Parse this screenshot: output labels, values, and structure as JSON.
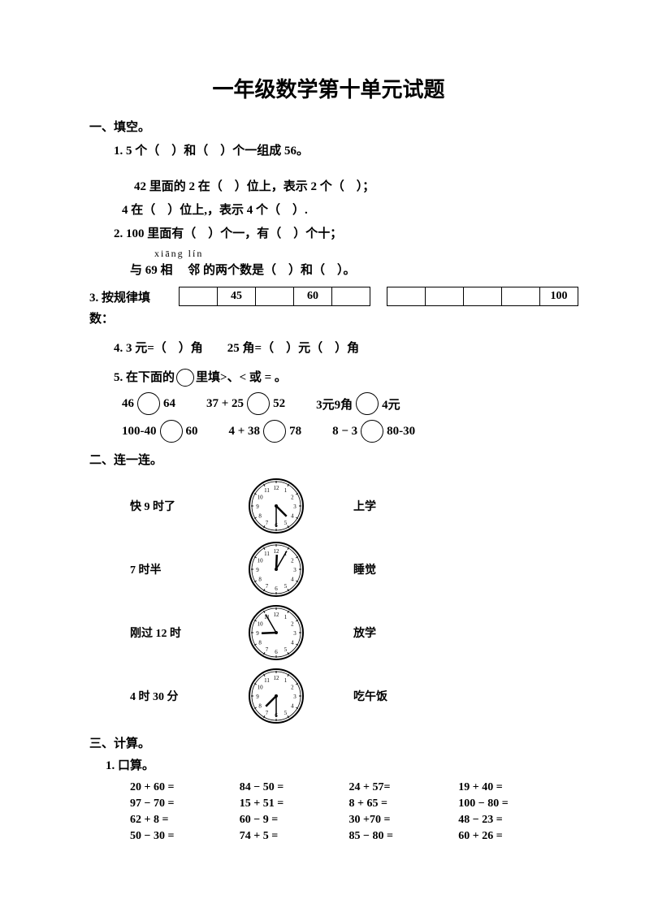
{
  "title": "一年级数学第十单元试题",
  "sec1": {
    "head": "一、填空。"
  },
  "q1": {
    "text": "1. 5 个（　）和（　）个一组成 56。"
  },
  "q1b": {
    "l1": "42 里面的 2 在（　）位上，表示 2 个（　）；",
    "l2": "4 在（　）位上,，表示 4 个（　）."
  },
  "q2": {
    "l1": "2. 100 里面有（　）个一，有（　）个十；",
    "pinyin": "xiāng lín",
    "l2": "与 69 相　 邻 的两个数是（　）和（　）。"
  },
  "q3": {
    "label": "3. 按规律填",
    "label2": "数：",
    "row1": [
      "",
      "45",
      "",
      "60",
      ""
    ],
    "row2": [
      "",
      "",
      "",
      "",
      "100"
    ]
  },
  "q4": {
    "text": "4. 3 元=（　）角　　25 角=（　）元（　）角"
  },
  "q5": {
    "head": "5. 在下面的",
    "mid": "里填>、< 或 = 。",
    "rows": [
      [
        {
          "a": "46",
          "b": "64"
        },
        {
          "a": "37 + 25",
          "b": "52"
        },
        {
          "a": "3元9角",
          "b": "4元"
        }
      ],
      [
        {
          "a": "100-40",
          "b": "60"
        },
        {
          "a": "4 + 38",
          "b": "78"
        },
        {
          "a": "8 − 3",
          "b": "80-30"
        }
      ]
    ]
  },
  "sec2": {
    "head": "二、连一连。",
    "rows": [
      {
        "left": "快 9 时了",
        "right": "上学",
        "h": 4,
        "m": 30
      },
      {
        "left": "7 时半",
        "right": "睡觉",
        "h": 12,
        "m": 5
      },
      {
        "left": "刚过 12 时",
        "right": "放学",
        "h": 8,
        "m": 55
      },
      {
        "left": "4 时 30 分",
        "right": "吃午饭",
        "h": 7,
        "m": 30
      }
    ]
  },
  "sec3": {
    "head": "三、计算。",
    "sub": "1. 口算。",
    "cells": [
      "20 + 60 =",
      "84 − 50 =",
      "24 + 57=",
      "19 + 40 =",
      "97 − 70 =",
      "15 + 51 =",
      "8 + 65 =",
      "100 − 80 =",
      "62 + 8 =",
      "60 − 9 =",
      "30 +70 =",
      "48 − 23 =",
      "50 − 30 =",
      "74 + 5 =",
      "85 − 80 =",
      "60 + 26 ="
    ]
  },
  "colors": {
    "text": "#000000",
    "bg": "#ffffff",
    "border": "#000000"
  }
}
